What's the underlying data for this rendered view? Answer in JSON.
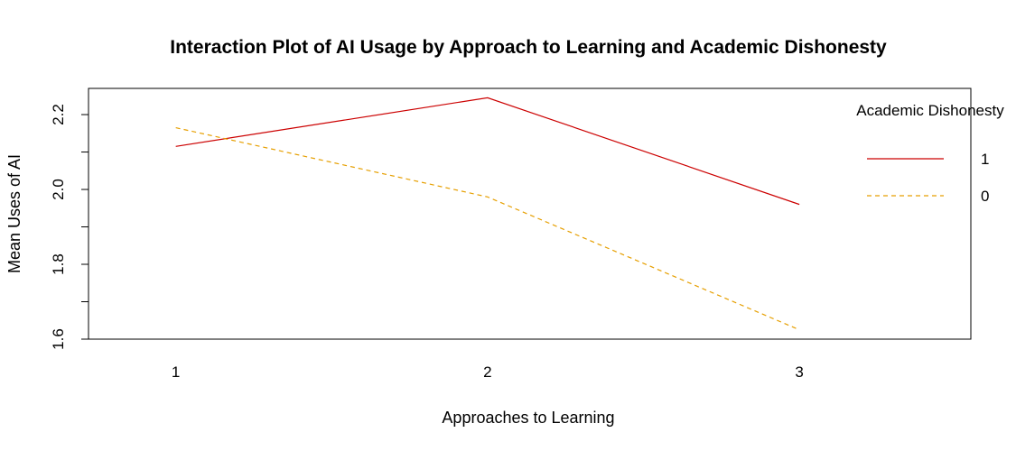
{
  "chart_data": {
    "type": "line",
    "title": "Interaction Plot of AI Usage by Approach to Learning and Academic Dishonesty",
    "xlabel": "Approaches to Learning",
    "ylabel": "Mean Uses of AI",
    "x": [
      1,
      2,
      3
    ],
    "x_tick_labels": [
      "1",
      "2",
      "3"
    ],
    "y_ticks": [
      1.6,
      1.7,
      1.8,
      1.9,
      2.0,
      2.1,
      2.2
    ],
    "y_tick_labels": [
      "1.6",
      "1.8",
      "2.0",
      "2.2"
    ],
    "xlim": [
      0.72,
      3.55
    ],
    "ylim": [
      1.6,
      2.27
    ],
    "grid": false,
    "legend": {
      "title": "Academic Dishonesty",
      "placement": "top-right"
    },
    "series": [
      {
        "name": "1",
        "values": [
          2.115,
          2.245,
          1.96
        ],
        "color": "#cc0000",
        "dash": "solid"
      },
      {
        "name": "0",
        "values": [
          2.165,
          1.98,
          1.625
        ],
        "color": "#e69f00",
        "dash": "dashed"
      }
    ]
  }
}
